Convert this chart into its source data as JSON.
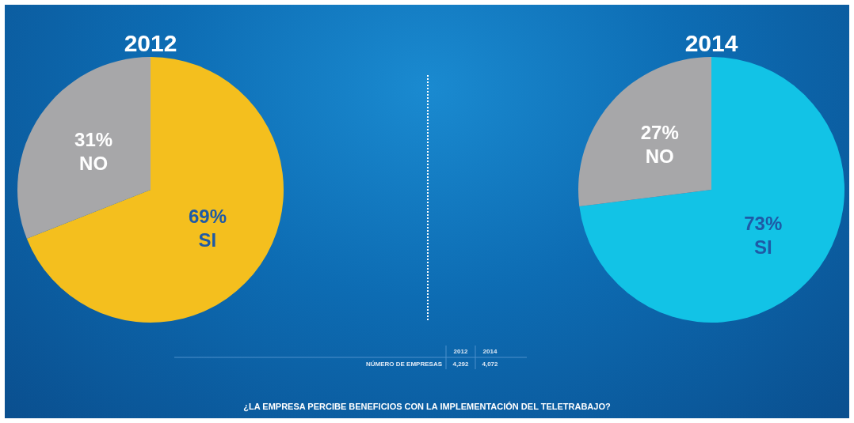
{
  "chart_data": [
    {
      "type": "pie",
      "title": "2012",
      "categories": [
        "SI",
        "NO"
      ],
      "values": [
        69,
        31
      ],
      "colors": [
        "#f4bf1e",
        "#a7a7a9"
      ],
      "value_labels": [
        "69%",
        "31%"
      ],
      "legend": false,
      "annotations": [
        "2012",
        "2014",
        "NÚMERO DE EMPRESAS",
        "4,292",
        "4,072",
        "¿LA EMPRESA PERCIBE BENEFICIOS CON LA IMPLEMENTACIÓN DEL TELETRABAJO?"
      ]
    },
    {
      "type": "pie",
      "title": "2014",
      "categories": [
        "SI",
        "NO"
      ],
      "values": [
        73,
        27
      ],
      "colors": [
        "#12c3e6",
        "#a7a7a9"
      ],
      "value_labels": [
        "73%",
        "27%"
      ],
      "legend": false
    }
  ]
}
